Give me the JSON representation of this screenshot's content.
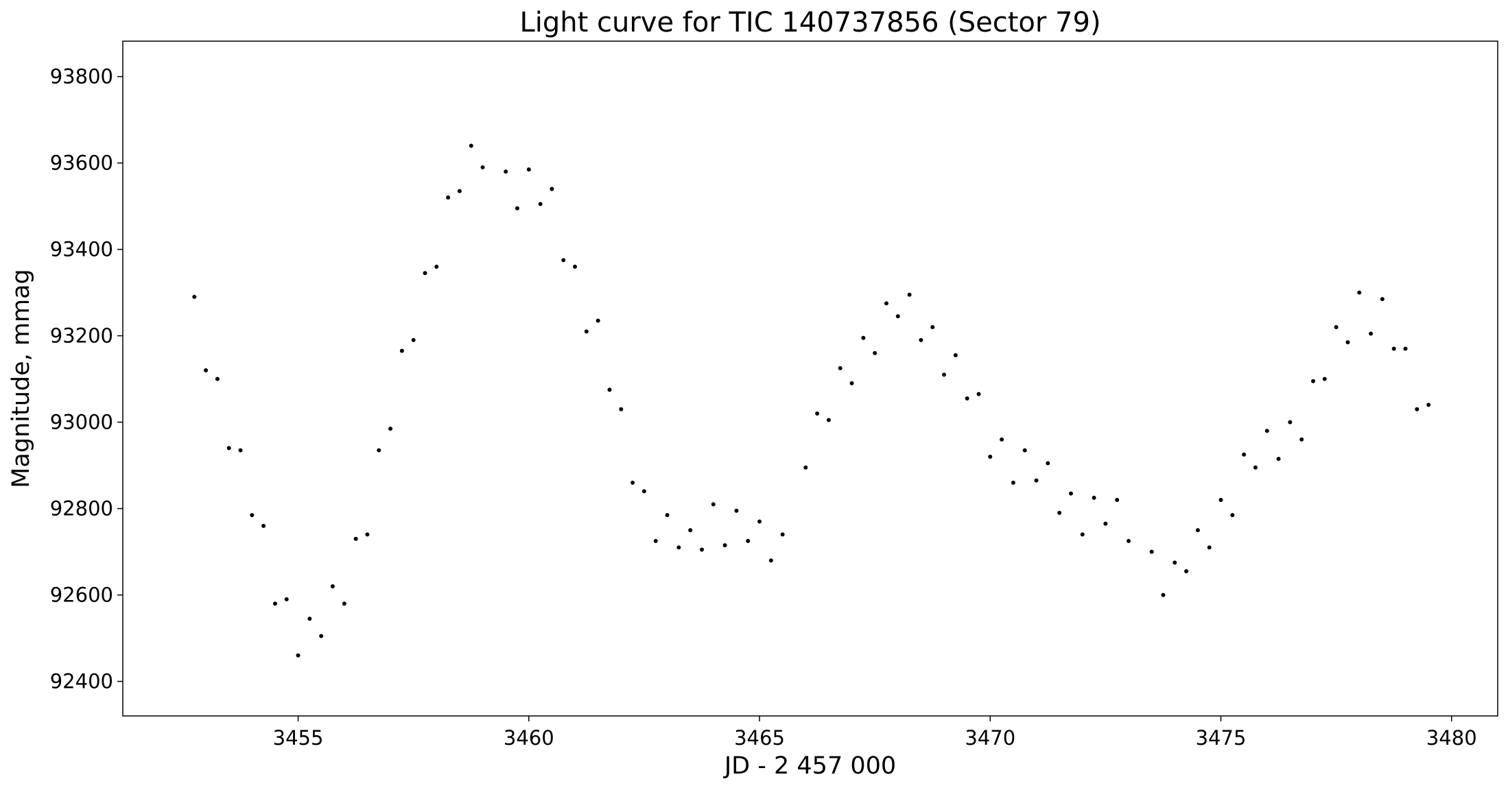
{
  "chart_data": {
    "type": "scatter",
    "title": "Light curve for TIC 140737856 (Sector 79)",
    "x_label": "JD - 2 457 000",
    "y_label": "Magnitude, mmag",
    "color": "#000000",
    "grid": false,
    "xlim": [
      3451.2,
      3481.0
    ],
    "ylim": [
      92320,
      93882
    ],
    "xticks": [
      3455,
      3460,
      3465,
      3470,
      3475,
      3480
    ],
    "yticks": [
      92400,
      92600,
      92800,
      93000,
      93200,
      93400,
      93600,
      93800
    ],
    "series": [
      {
        "name": "TIC 140737856",
        "color": "#000000",
        "x": [
          3452.75,
          3453.0,
          3453.25,
          3453.5,
          3453.75,
          3454.0,
          3454.25,
          3454.5,
          3454.75,
          3455.0,
          3455.25,
          3455.5,
          3455.75,
          3456.0,
          3456.25,
          3456.5,
          3456.75,
          3457.0,
          3457.25,
          3457.5,
          3457.75,
          3458.0,
          3458.25,
          3458.5,
          3458.75,
          3459.0,
          3459.5,
          3459.75,
          3460.0,
          3460.25,
          3460.5,
          3460.75,
          3461.0,
          3461.25,
          3461.5,
          3461.75,
          3462.0,
          3462.25,
          3462.5,
          3462.75,
          3463.0,
          3463.25,
          3463.5,
          3463.75,
          3464.0,
          3464.25,
          3464.5,
          3464.75,
          3465.0,
          3465.25,
          3465.5,
          3466.0,
          3466.25,
          3466.5,
          3466.75,
          3467.0,
          3467.25,
          3467.5,
          3467.75,
          3468.0,
          3468.25,
          3468.5,
          3468.75,
          3469.0,
          3469.25,
          3469.5,
          3469.75,
          3470.0,
          3470.25,
          3470.5,
          3470.75,
          3471.0,
          3471.25,
          3471.5,
          3471.75,
          3472.0,
          3472.25,
          3472.5,
          3472.75,
          3473.0,
          3473.5,
          3473.75,
          3474.0,
          3474.25,
          3474.5,
          3474.75,
          3475.0,
          3475.25,
          3475.5,
          3475.75,
          3476.0,
          3476.25,
          3476.5,
          3476.75,
          3477.0,
          3477.25,
          3477.5,
          3477.75,
          3478.0,
          3478.25,
          3478.5,
          3478.75,
          3479.0,
          3479.25,
          3479.5
        ],
        "values": [
          93290,
          93120,
          93100,
          92940,
          92935,
          92785,
          92760,
          92580,
          92590,
          92460,
          92545,
          92505,
          92620,
          92580,
          92730,
          92740,
          92935,
          92985,
          93165,
          93190,
          93345,
          93360,
          93520,
          93535,
          93640,
          93590,
          93580,
          93495,
          93585,
          93505,
          93540,
          93375,
          93360,
          93210,
          93235,
          93075,
          93030,
          92860,
          92840,
          92725,
          92785,
          92710,
          92750,
          92705,
          92810,
          92715,
          92795,
          92725,
          92770,
          92680,
          92740,
          92895,
          93020,
          93005,
          93125,
          93090,
          93195,
          93160,
          93275,
          93245,
          93295,
          93190,
          93220,
          93110,
          93155,
          93055,
          93065,
          92920,
          92960,
          92860,
          92935,
          92865,
          92905,
          92790,
          92835,
          92740,
          92825,
          92765,
          92820,
          92725,
          92700,
          92600,
          92675,
          92655,
          92750,
          92710,
          92820,
          92785,
          92925,
          92895,
          92980,
          92915,
          93000,
          92960,
          93095,
          93100,
          93220,
          93185,
          93300,
          93205,
          93285,
          93170,
          93170,
          93030,
          93040
        ]
      }
    ]
  }
}
